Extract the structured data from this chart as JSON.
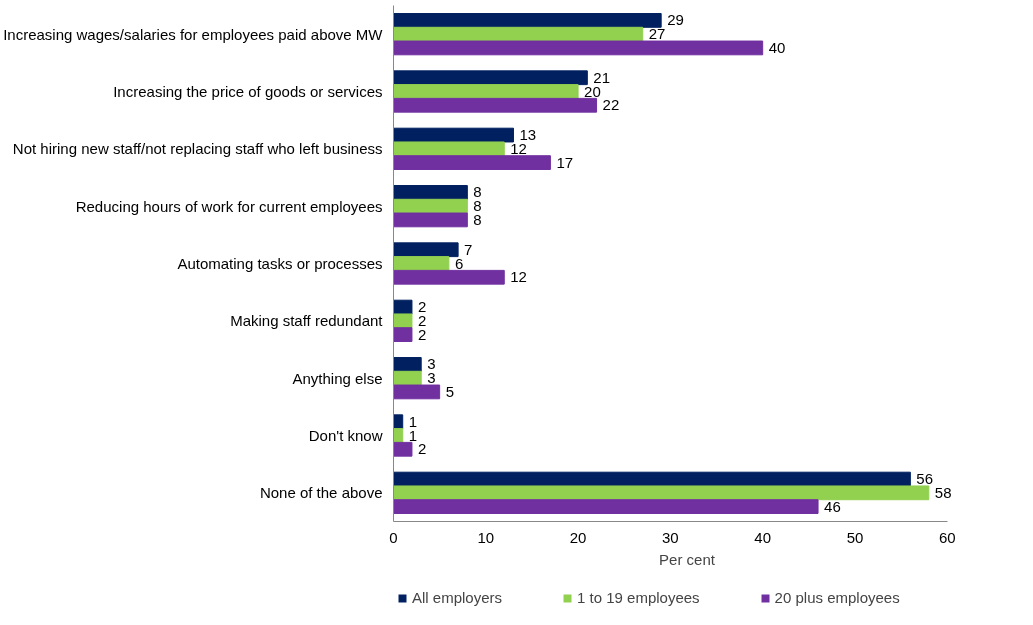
{
  "chart_data": {
    "type": "bar",
    "orientation": "horizontal",
    "categories": [
      "Increasing wages/salaries for employees paid above MW",
      "Increasing the price of goods or services",
      "Not hiring new staff/not replacing staff who left business",
      "Reducing hours of work for current employees",
      "Automating tasks or processes",
      "Making staff redundant",
      "Anything else",
      "Don't know",
      "None of the above"
    ],
    "series": [
      {
        "name": "All employers",
        "color": "#002060",
        "values": [
          29,
          21,
          13,
          8,
          7,
          2,
          3,
          1,
          56
        ]
      },
      {
        "name": "1 to 19 employees",
        "color": "#92d050",
        "values": [
          27,
          20,
          12,
          8,
          6,
          2,
          3,
          1,
          58
        ]
      },
      {
        "name": "20 plus employees",
        "color": "#7030a0",
        "values": [
          40,
          22,
          17,
          8,
          12,
          2,
          5,
          2,
          46
        ]
      }
    ],
    "xlabel": "Per cent",
    "xlim": [
      0,
      60
    ],
    "xticks": [
      0,
      10,
      20,
      30,
      40,
      50,
      60
    ],
    "data_labels": true,
    "grid": false,
    "legend": "bottom"
  }
}
